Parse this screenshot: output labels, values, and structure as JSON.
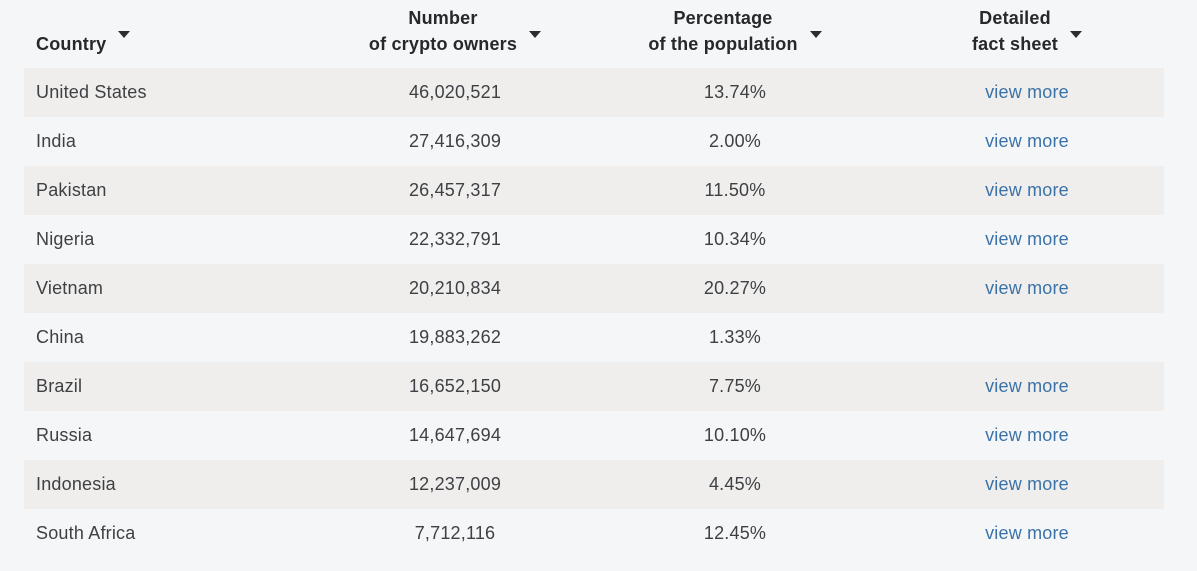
{
  "table": {
    "columns": [
      {
        "label1": "Country"
      },
      {
        "label1": "Number",
        "label2": "of crypto owners"
      },
      {
        "label1": "Percentage",
        "label2": "of the population"
      },
      {
        "label1": "Detailed",
        "label2": "fact sheet"
      }
    ],
    "rows": [
      {
        "country": "United States",
        "owners": "46,020,521",
        "percentage": "13.74%",
        "link": "view more"
      },
      {
        "country": "India",
        "owners": "27,416,309",
        "percentage": "2.00%",
        "link": "view more"
      },
      {
        "country": "Pakistan",
        "owners": "26,457,317",
        "percentage": "11.50%",
        "link": "view more"
      },
      {
        "country": "Nigeria",
        "owners": "22,332,791",
        "percentage": "10.34%",
        "link": "view more"
      },
      {
        "country": "Vietnam",
        "owners": "20,210,834",
        "percentage": "20.27%",
        "link": "view more"
      },
      {
        "country": "China",
        "owners": "19,883,262",
        "percentage": "1.33%"
      },
      {
        "country": "Brazil",
        "owners": "16,652,150",
        "percentage": "7.75%",
        "link": "view more"
      },
      {
        "country": "Russia",
        "owners": "14,647,694",
        "percentage": "10.10%",
        "link": "view more"
      },
      {
        "country": "Indonesia",
        "owners": "12,237,009",
        "percentage": "4.45%",
        "link": "view more"
      },
      {
        "country": "South Africa",
        "owners": "7,712,116",
        "percentage": "12.45%",
        "link": "view more"
      }
    ],
    "colors": {
      "page_bg": "#f5f6f8",
      "row_alt_bg": "#efeeec",
      "header_text": "#26282b",
      "body_text": "#3e4044",
      "link": "#3a72a8"
    }
  }
}
